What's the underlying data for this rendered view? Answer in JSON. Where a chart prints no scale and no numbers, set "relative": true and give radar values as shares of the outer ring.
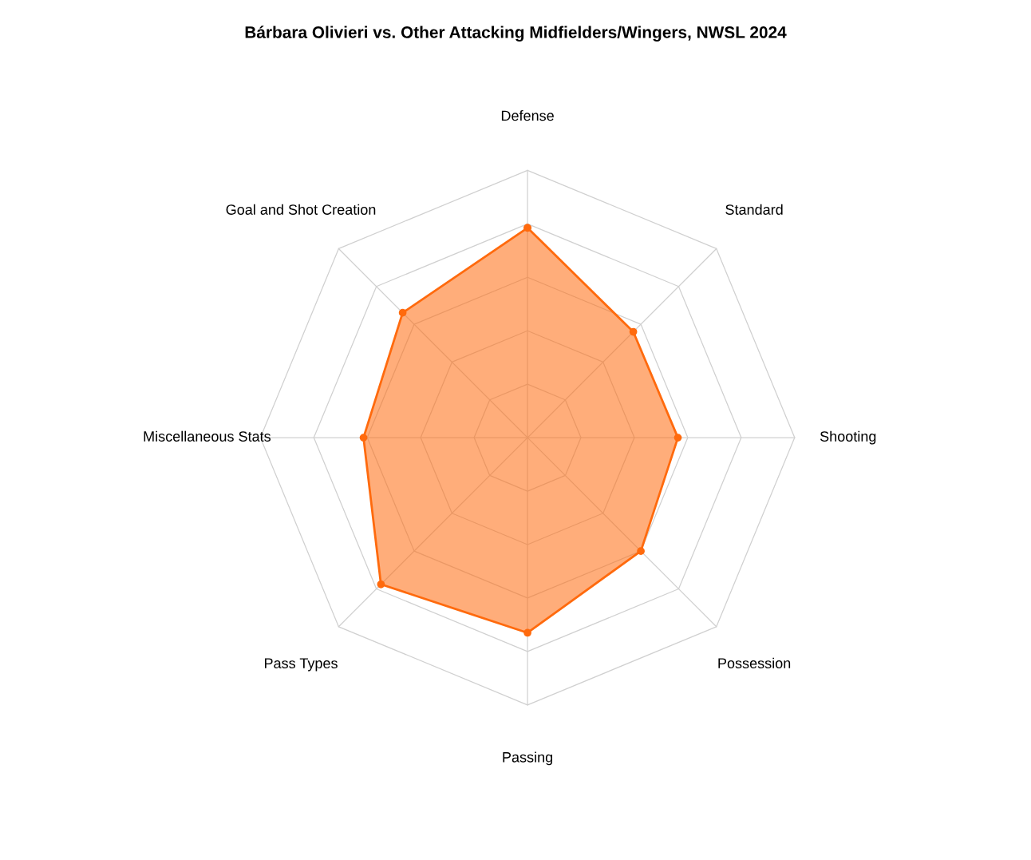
{
  "chart_data": {
    "type": "radar",
    "title": "Bárbara Olivieri vs. Other Attacking Midfielders/Wingers, NWSL 2024",
    "categories": [
      "Defense",
      "Standard",
      "Shooting",
      "Possession",
      "Passing",
      "Pass Types",
      "Miscellaneous Stats",
      "Goal and Shot Creation"
    ],
    "relative": true,
    "grid": true,
    "marker": "circle",
    "series": [
      {
        "color": "#ff6a0d",
        "values": [
          0.785,
          0.56,
          0.563,
          0.6,
          0.73,
          0.776,
          0.614,
          0.661
        ]
      }
    ]
  }
}
